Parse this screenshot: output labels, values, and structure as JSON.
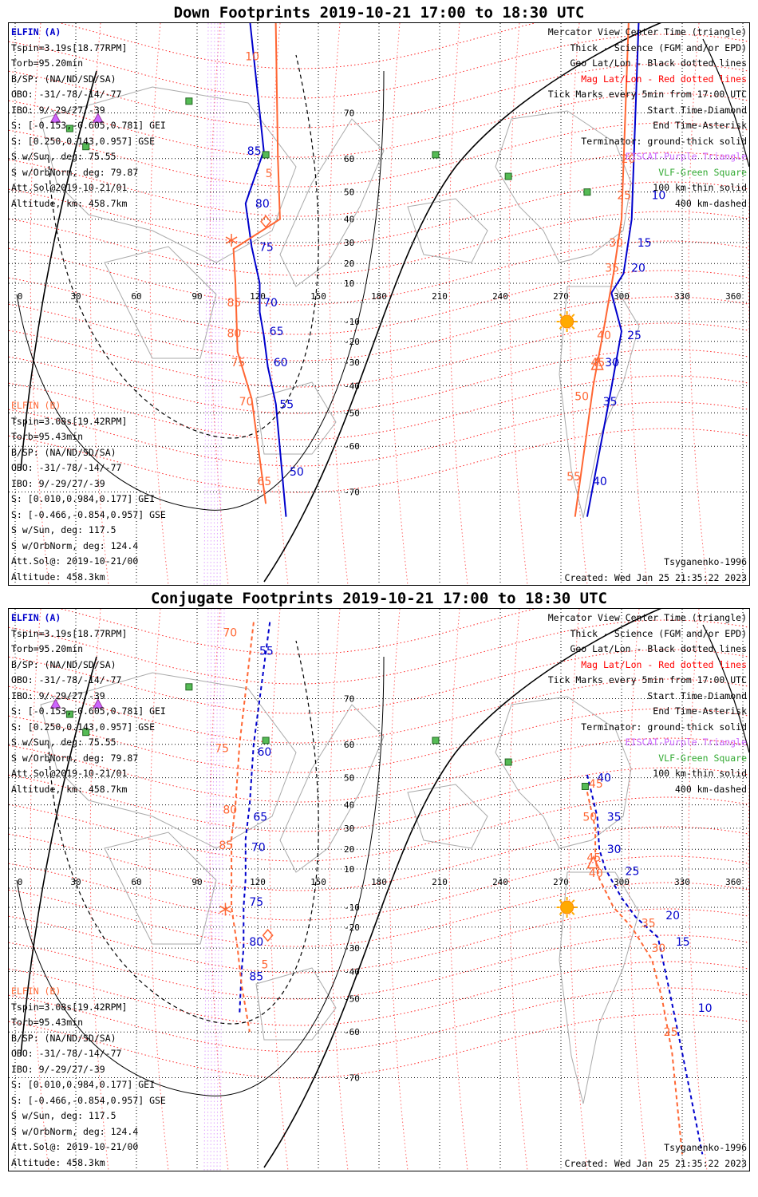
{
  "chart_data": [
    {
      "type": "map",
      "title": "Down Footprints 2019-10-21 17:00 to 18:30 UTC",
      "projection": "Mercator",
      "x_ticks": [
        "0",
        "30",
        "60",
        "90",
        "120",
        "150",
        "180",
        "210",
        "240",
        "270",
        "300",
        "330",
        "360"
      ],
      "y_ticks": [
        "70",
        "60",
        "50",
        "40",
        "30",
        "20",
        "10",
        "-10",
        "-20",
        "-30",
        "-40",
        "-50",
        "-60",
        "-70"
      ],
      "left_info": [
        {
          "text": "ELFIN (A)",
          "style": "probe-a"
        },
        {
          "text": "Tspin=3.19s[18.77RPM]"
        },
        {
          "text": "Torb=95.20min"
        },
        {
          "text": "B/SP: (NA/ND/SD/SA)"
        },
        {
          "text": "OBO: -31/-78/-14/-77"
        },
        {
          "text": "IBO: 9/-29/27/-39"
        },
        {
          "text": "S: [-0.153,-0.605,0.781] GEI"
        },
        {
          "text": "S: [0.250,0.143,0.957] GSE"
        },
        {
          "text": "S w/Sun, deg: 75.55"
        },
        {
          "text": "S w/OrbNorm, deg: 79.87"
        },
        {
          "text": "Att.Sol@2019-10-21/01"
        },
        {
          "text": "Altitude, km: 458.7km"
        }
      ],
      "left_info_b": [
        {
          "text": "ELFIN (B)",
          "style": "probe-b"
        },
        {
          "text": "Tspin=3.08s[19.42RPM]"
        },
        {
          "text": "Torb=95.43min"
        },
        {
          "text": "B/SP: (NA/ND/SD/SA)"
        },
        {
          "text": "OBO: -31/-78/-14/-77"
        },
        {
          "text": "IBO: 9/-29/27/-39"
        },
        {
          "text": "S: [0.010,0.984,0.177] GEI"
        },
        {
          "text": "S: [-0.466,-0.854,0.957] GSE"
        },
        {
          "text": "S w/Sun, deg: 117.5"
        },
        {
          "text": "S w/OrbNorm, deg: 124.4"
        },
        {
          "text": "Att.Sol@: 2019-10-21/00"
        },
        {
          "text": "Altitude: 458.3km"
        }
      ],
      "legend": [
        {
          "text": "Mercator View Center Time (triangle)"
        },
        {
          "text": "Thick - Science (FGM and/or EPD)"
        },
        {
          "text": "Geo Lat/Lon - Black dotted lines"
        },
        {
          "text": "Mag Lat/Lon - Red dotted lines",
          "style": "red-txt"
        },
        {
          "text": "Tick Marks every 5min from 17:00 UTC"
        },
        {
          "text": "Start Time-Diamond"
        },
        {
          "text": "End Time-Asterisk"
        },
        {
          "text": "Terminator: ground-thick solid"
        },
        {
          "text": "EISCAT-Purple Triangle",
          "style": "purple-txt"
        },
        {
          "text": "VLF-Green Square",
          "style": "green-txt"
        },
        {
          "text": "100 km-thin solid"
        },
        {
          "text": "400 km-dashed"
        }
      ],
      "model": "Tsyganenko-1996",
      "created": "Created: Wed Jan 25 21:35:22 2023",
      "track_A_left": {
        "color": "#0000cc",
        "dashed": false,
        "points": [
          [
            114,
            84
          ],
          [
            123,
            62
          ],
          [
            114,
            46
          ],
          [
            117,
            28
          ],
          [
            121,
            10
          ],
          [
            121,
            -5
          ],
          [
            123,
            -17
          ],
          [
            125,
            -32
          ],
          [
            129,
            -47
          ],
          [
            134,
            -74
          ]
        ],
        "labels": [
          {
            "t": "85",
            "p": [
              114,
              62
            ]
          },
          {
            "t": "80",
            "p": [
              118,
              46
            ]
          },
          {
            "t": "75",
            "p": [
              120,
              28
            ]
          },
          {
            "t": "70",
            "p": [
              122,
              0
            ]
          },
          {
            "t": "65",
            "p": [
              125,
              -15
            ]
          },
          {
            "t": "60",
            "p": [
              127,
              -30
            ]
          },
          {
            "t": "55",
            "p": [
              130,
              -47
            ]
          },
          {
            "t": "50",
            "p": [
              135,
              -66
            ]
          }
        ]
      },
      "track_B_left": {
        "color": "#ff6633",
        "dashed": false,
        "points": [
          [
            128,
            87
          ],
          [
            130,
            60
          ],
          [
            131,
            40
          ],
          [
            108,
            27
          ],
          [
            109,
            10
          ],
          [
            110,
            -25
          ],
          [
            117,
            -45
          ],
          [
            124,
            -72
          ]
        ],
        "labels": [
          {
            "t": "10",
            "p": [
              113,
              78
            ]
          },
          {
            "t": "5",
            "p": [
              123,
              56
            ]
          },
          {
            "t": "85",
            "p": [
              104,
              0
            ]
          },
          {
            "t": "80",
            "p": [
              104,
              -16
            ]
          },
          {
            "t": "75",
            "p": [
              106,
              -30
            ]
          },
          {
            "t": "70",
            "p": [
              110,
              -46
            ]
          },
          {
            "t": "65",
            "p": [
              119,
              -68
            ]
          }
        ]
      },
      "track_A_right": {
        "color": "#0000cc",
        "dashed": false,
        "points": [
          [
            310,
            86
          ],
          [
            305,
            40
          ],
          [
            301,
            15
          ],
          [
            295,
            5
          ],
          [
            300,
            -15
          ],
          [
            294,
            -45
          ],
          [
            283,
            -74
          ]
        ],
        "labels": [
          {
            "t": "10",
            "p": [
              314,
              49
            ]
          },
          {
            "t": "15",
            "p": [
              307,
              30
            ]
          },
          {
            "t": "20",
            "p": [
              304,
              18
            ]
          },
          {
            "t": "25",
            "p": [
              302,
              -17
            ]
          },
          {
            "t": "30",
            "p": [
              291,
              -30
            ]
          },
          {
            "t": "35",
            "p": [
              290,
              -46
            ]
          },
          {
            "t": "40",
            "p": [
              285,
              -68
            ]
          }
        ]
      },
      "track_B_right": {
        "color": "#ff6633",
        "dashed": false,
        "points": [
          [
            305,
            86
          ],
          [
            300,
            40
          ],
          [
            296,
            15
          ],
          [
            291,
            -15
          ],
          [
            286,
            -40
          ],
          [
            277,
            -74
          ]
        ],
        "labels": [
          {
            "t": "20",
            "p": [
              299,
              60
            ]
          },
          {
            "t": "25",
            "p": [
              297,
              49
            ]
          },
          {
            "t": "30",
            "p": [
              293,
              30
            ]
          },
          {
            "t": "35",
            "p": [
              291,
              18
            ]
          },
          {
            "t": "40",
            "p": [
              287,
              -17
            ]
          },
          {
            "t": "45",
            "p": [
              284,
              -30
            ]
          },
          {
            "t": "50",
            "p": [
              276,
              -44
            ]
          },
          {
            "t": "55",
            "p": [
              272,
              -67
            ]
          }
        ]
      },
      "markers": {
        "diamond": [
          124,
          39
        ],
        "asterisk": [
          107,
          31
        ],
        "triangle": [
          288,
          -31
        ],
        "sun": [
          273,
          -10
        ],
        "eiscat": [
          [
            20,
            69
          ],
          [
            41,
            69
          ]
        ],
        "vlf": [
          [
            86,
            72
          ],
          [
            27,
            67
          ],
          [
            35,
            63
          ],
          [
            124,
            61
          ],
          [
            208,
            61
          ],
          [
            244,
            55
          ],
          [
            283,
            50
          ]
        ]
      }
    },
    {
      "type": "map",
      "title": "Conjugate Footprints 2019-10-21 17:00 to 18:30 UTC",
      "projection": "Mercator",
      "x_ticks": [
        "0",
        "30",
        "60",
        "90",
        "120",
        "150",
        "180",
        "210",
        "240",
        "270",
        "300",
        "330",
        "360"
      ],
      "y_ticks": [
        "70",
        "60",
        "50",
        "40",
        "30",
        "20",
        "10",
        "-10",
        "-20",
        "-30",
        "-40",
        "-50",
        "-60",
        "-70"
      ],
      "left_info": [
        {
          "text": "ELFIN (A)",
          "style": "probe-a"
        },
        {
          "text": "Tspin=3.19s[18.77RPM]"
        },
        {
          "text": "Torb=95.20min"
        },
        {
          "text": "B/SP: (NA/ND/SD/SA)"
        },
        {
          "text": "OBO: -31/-78/-14/-77"
        },
        {
          "text": "IBO: 9/-29/27/-39"
        },
        {
          "text": "S: [-0.153,-0.605,0.781] GEI"
        },
        {
          "text": "S: [0.250,0.143,0.957] GSE"
        },
        {
          "text": "S w/Sun, deg: 75.55"
        },
        {
          "text": "S w/OrbNorm, deg: 79.87"
        },
        {
          "text": "Att.Sol@2019-10-21/01"
        },
        {
          "text": "Altitude, km: 458.7km"
        }
      ],
      "left_info_b": [
        {
          "text": "ELFIN (B)",
          "style": "probe-b"
        },
        {
          "text": "Tspin=3.08s[19.42RPM]"
        },
        {
          "text": "Torb=95.43min"
        },
        {
          "text": "B/SP: (NA/ND/SD/SA)"
        },
        {
          "text": "OBO: -31/-78/-14/-77"
        },
        {
          "text": "IBO: 9/-29/27/-39"
        },
        {
          "text": "S: [0.010,0.984,0.177] GEI"
        },
        {
          "text": "S: [-0.466,-0.854,0.957] GSE"
        },
        {
          "text": "S w/Sun, deg: 117.5"
        },
        {
          "text": "S w/OrbNorm, deg: 124.4"
        },
        {
          "text": "Att.Sol@: 2019-10-21/00"
        },
        {
          "text": "Altitude: 458.3km"
        }
      ],
      "legend": [
        {
          "text": "Mercator View Center Time (triangle)"
        },
        {
          "text": "Thick - Science (FGM and/or EPD)"
        },
        {
          "text": "Geo Lat/Lon - Black dotted lines"
        },
        {
          "text": "Mag Lat/Lon - Red dotted lines",
          "style": "red-txt"
        },
        {
          "text": "Tick Marks every 5min from 17:00 UTC"
        },
        {
          "text": "Start Time-Diamond"
        },
        {
          "text": "End Time-Asterisk"
        },
        {
          "text": "Terminator: ground-thick solid"
        },
        {
          "text": "EISCAT-Purple Triangle",
          "style": "purple-txt"
        },
        {
          "text": "VLF-Green Square",
          "style": "green-txt"
        },
        {
          "text": "100 km-thin solid"
        },
        {
          "text": "400 km-dashed"
        }
      ],
      "model": "Tsyganenko-1996",
      "created": "Created: Wed Jan 25 21:35:22 2023",
      "track_A_left": {
        "color": "#0000cc",
        "dashed": true,
        "points": [
          [
            126,
            80
          ],
          [
            118,
            60
          ],
          [
            116,
            40
          ],
          [
            114,
            25
          ],
          [
            114,
            5
          ],
          [
            113,
            -10
          ],
          [
            113,
            -30
          ],
          [
            112,
            -40
          ],
          [
            111,
            -55
          ]
        ],
        "labels": [
          {
            "t": "55",
            "p": [
              120,
              77
            ]
          },
          {
            "t": "60",
            "p": [
              119,
              58
            ]
          },
          {
            "t": "65",
            "p": [
              117,
              35
            ]
          },
          {
            "t": "70",
            "p": [
              116,
              21
            ]
          },
          {
            "t": "75",
            "p": [
              115,
              -7
            ]
          },
          {
            "t": "80",
            "p": [
              115,
              -27
            ]
          },
          {
            "t": "85",
            "p": [
              115,
              -42
            ]
          }
        ]
      },
      "track_B_left": {
        "color": "#ff6633",
        "dashed": true,
        "points": [
          [
            118,
            80
          ],
          [
            111,
            60
          ],
          [
            109,
            40
          ],
          [
            107,
            25
          ],
          [
            107,
            5
          ],
          [
            107,
            -10
          ],
          [
            110,
            -30
          ],
          [
            112,
            -45
          ],
          [
            116,
            -60
          ]
        ],
        "labels": [
          {
            "t": "70",
            "p": [
              102,
              79
            ]
          },
          {
            "t": "75",
            "p": [
              98,
              59
            ]
          },
          {
            "t": "80",
            "p": [
              102,
              38
            ]
          },
          {
            "t": "85",
            "p": [
              100,
              22
            ]
          },
          {
            "t": "5",
            "p": [
              121,
              -37
            ]
          }
        ]
      },
      "markers_left": {
        "diamond": [
          125,
          -24
        ],
        "asterisk": [
          104,
          -11
        ]
      },
      "track_A_right": {
        "color": "#0000cc",
        "dashed": true,
        "points": [
          [
            283,
            51
          ],
          [
            288,
            35
          ],
          [
            289,
            20
          ],
          [
            292,
            10
          ],
          [
            300,
            -5
          ],
          [
            307,
            -15
          ],
          [
            318,
            -25
          ],
          [
            323,
            -45
          ],
          [
            330,
            -65
          ],
          [
            340,
            -80
          ]
        ],
        "labels": [
          {
            "t": "40",
            "p": [
              287,
              50
            ]
          },
          {
            "t": "35",
            "p": [
              292,
              35
            ]
          },
          {
            "t": "30",
            "p": [
              292,
              20
            ]
          },
          {
            "t": "25",
            "p": [
              301,
              9
            ]
          },
          {
            "t": "20",
            "p": [
              321,
              -14
            ]
          },
          {
            "t": "15",
            "p": [
              326,
              -27
            ]
          },
          {
            "t": "10",
            "p": [
              337,
              -53
            ]
          }
        ]
      },
      "track_B_right": {
        "color": "#ff6633",
        "dashed": true,
        "points": [
          [
            283,
            45
          ],
          [
            287,
            30
          ],
          [
            287,
            15
          ],
          [
            289,
            5
          ],
          [
            296,
            -10
          ],
          [
            305,
            -20
          ],
          [
            315,
            -35
          ],
          [
            320,
            -50
          ],
          [
            325,
            -65
          ],
          [
            330,
            -80
          ]
        ],
        "labels": [
          {
            "t": "45",
            "p": [
              283,
              48
            ]
          },
          {
            "t": "50",
            "p": [
              280,
              35
            ]
          },
          {
            "t": "45",
            "p": [
              282,
              16
            ]
          },
          {
            "t": "40",
            "p": [
              283,
              8
            ]
          },
          {
            "t": "35",
            "p": [
              309,
              -18
            ]
          },
          {
            "t": "30",
            "p": [
              314,
              -30
            ]
          },
          {
            "t": "25",
            "p": [
              320,
              -60
            ]
          }
        ]
      },
      "markers": {
        "triangle": [
          286,
          13
        ],
        "sun": [
          273,
          -10
        ],
        "eiscat": [
          [
            20,
            69
          ],
          [
            41,
            69
          ]
        ],
        "vlf": [
          [
            86,
            72
          ],
          [
            27,
            67
          ],
          [
            35,
            63
          ],
          [
            124,
            61
          ],
          [
            208,
            61
          ],
          [
            244,
            55
          ],
          [
            282,
            47
          ]
        ]
      }
    }
  ]
}
